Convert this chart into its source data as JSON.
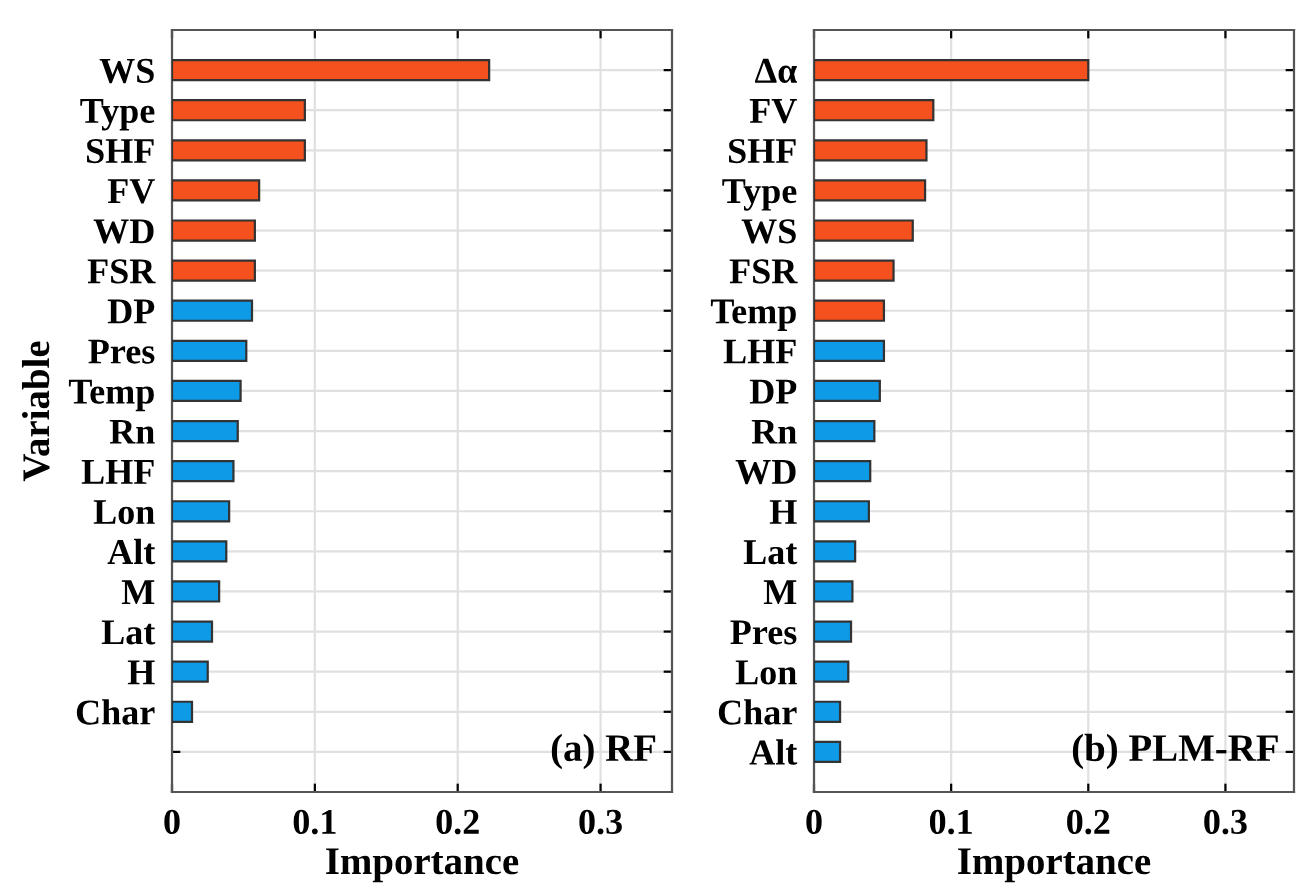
{
  "chart_data": [
    {
      "type": "bar",
      "orientation": "horizontal",
      "ylabel": "Variable",
      "xlabel": "Importance",
      "annotations": [
        "(a) RF"
      ],
      "categories": [
        "WS",
        "Type",
        "SHF",
        "FV",
        "WD",
        "FSR",
        "DP",
        "Pres",
        "Temp",
        "Rn",
        "LHF",
        "Lon",
        "Alt",
        "M",
        "Lat",
        "H",
        "Char",
        null
      ],
      "values": [
        0.222,
        0.093,
        0.093,
        0.061,
        0.058,
        0.058,
        0.056,
        0.052,
        0.048,
        0.046,
        0.043,
        0.04,
        0.038,
        0.033,
        0.028,
        0.025,
        0.014,
        null
      ],
      "colors": [
        "#f4511e",
        "#f4511e",
        "#f4511e",
        "#f4511e",
        "#f4511e",
        "#f4511e",
        "#0d9be8",
        "#0d9be8",
        "#0d9be8",
        "#0d9be8",
        "#0d9be8",
        "#0d9be8",
        "#0d9be8",
        "#0d9be8",
        "#0d9be8",
        "#0d9be8",
        "#0d9be8",
        "#0d9be8"
      ],
      "xlim": [
        0,
        0.35
      ],
      "xticks": [
        0,
        0.1,
        0.2,
        0.3
      ],
      "grid": true
    },
    {
      "type": "bar",
      "orientation": "horizontal",
      "xlabel": "Importance",
      "annotations": [
        "(b) PLM-RF"
      ],
      "categories": [
        "Δα",
        "FV",
        "SHF",
        "Type",
        "WS",
        "FSR",
        "Temp",
        "LHF",
        "DP",
        "Rn",
        "WD",
        "H",
        "Lat",
        "M",
        "Pres",
        "Lon",
        "Char",
        "Alt"
      ],
      "values": [
        0.2,
        0.087,
        0.082,
        0.081,
        0.072,
        0.058,
        0.051,
        0.051,
        0.048,
        0.044,
        0.041,
        0.04,
        0.03,
        0.028,
        0.027,
        0.025,
        0.019,
        0.019
      ],
      "colors": [
        "#f4511e",
        "#f4511e",
        "#f4511e",
        "#f4511e",
        "#f4511e",
        "#f4511e",
        "#f4511e",
        "#0d9be8",
        "#0d9be8",
        "#0d9be8",
        "#0d9be8",
        "#0d9be8",
        "#0d9be8",
        "#0d9be8",
        "#0d9be8",
        "#0d9be8",
        "#0d9be8",
        "#0d9be8"
      ],
      "xlim": [
        0,
        0.35
      ],
      "xticks": [
        0,
        0.1,
        0.2,
        0.3
      ],
      "grid": true
    }
  ]
}
